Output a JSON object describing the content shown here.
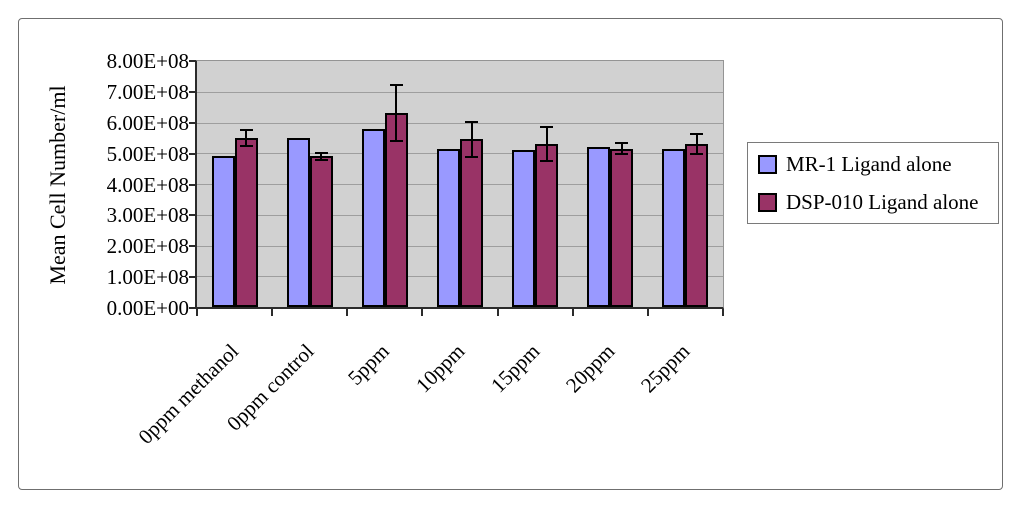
{
  "chart_data": {
    "type": "bar",
    "title": "",
    "ylabel": "Mean Cell Number/ml",
    "xlabel": "",
    "categories": [
      "0ppm methanol",
      "0ppm control",
      "5ppm",
      "10ppm",
      "15ppm",
      "20ppm",
      "25ppm"
    ],
    "series": [
      {
        "name": "MR-1 Ligand alone",
        "color": "#9999FF",
        "values": [
          490000000,
          550000000,
          580000000,
          515000000,
          510000000,
          520000000,
          515000000
        ]
      },
      {
        "name": "DSP-010 Ligand alone",
        "color": "#993366",
        "values": [
          550000000,
          490000000,
          630000000,
          545000000,
          530000000,
          515000000,
          530000000
        ],
        "errors_plus_minus": [
          30000000,
          15000000,
          95000000,
          60000000,
          60000000,
          20000000,
          35000000
        ]
      }
    ],
    "ylim": [
      0,
      800000000
    ],
    "ytick_step": 100000000,
    "ytick_labels": [
      "0.00E+00",
      "1.00E+08",
      "2.00E+08",
      "3.00E+08",
      "4.00E+08",
      "5.00E+08",
      "6.00E+08",
      "7.00E+08",
      "8.00E+08"
    ],
    "grid": "horizontal",
    "legend_position": "right",
    "plot_background": "#D1D1D1",
    "gridline_color": "#9E9E9E"
  }
}
